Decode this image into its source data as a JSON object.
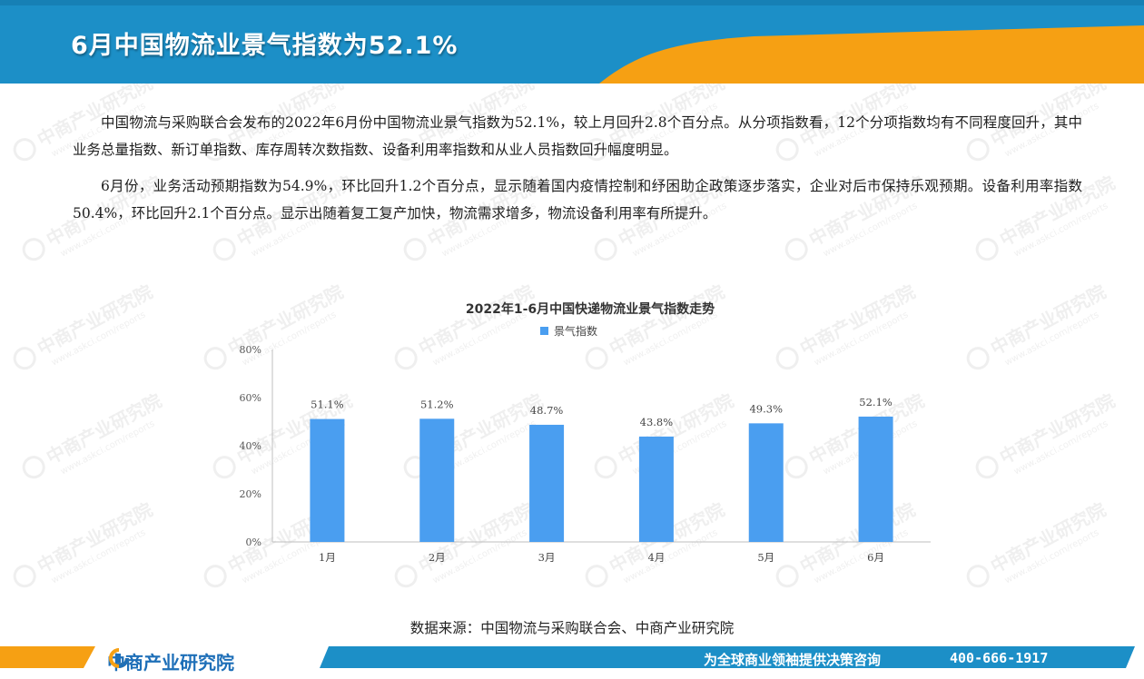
{
  "header": {
    "title": "6月中国物流业景气指数为52.1%",
    "colors": {
      "blue": "#1c8fc7",
      "orange": "#f6a013"
    }
  },
  "body": {
    "paragraph_1": "中国物流与采购联合会发布的2022年6月份中国物流业景气指数为52.1%，较上月回升2.8个百分点。从分项指数看，12个分项指数均有不同程度回升，其中业务总量指数、新订单指数、库存周转次数指数、设备利用率指数和从业人员指数回升幅度明显。",
    "paragraph_2": "6月份，业务活动预期指数为54.9%，环比回升1.2个百分点，显示随着国内疫情控制和纾困助企政策逐步落实，企业对后市保持乐观预期。设备利用率指数50.4%，环比回升2.1个百分点。显示出随着复工复产加快，物流需求增多，物流设备利用率有所提升。"
  },
  "chart_data": {
    "type": "bar",
    "title": "2022年1-6月中国快递物流业景气指数走势",
    "categories": [
      "1月",
      "2月",
      "3月",
      "4月",
      "5月",
      "6月"
    ],
    "series": [
      {
        "name": "景气指数",
        "values": [
          51.1,
          51.2,
          48.7,
          43.8,
          49.3,
          52.1
        ],
        "color": "#4a9ef0"
      }
    ],
    "data_labels": [
      "51.1%",
      "51.2%",
      "48.7%",
      "43.8%",
      "49.3%",
      "52.1%"
    ],
    "y_ticks": [
      "0%",
      "20%",
      "40%",
      "60%",
      "80%"
    ],
    "ylim": [
      0,
      80
    ],
    "legend_position": "top-center",
    "grid": false
  },
  "source": "数据来源：中国物流与采购联合会、中商产业研究院",
  "footer": {
    "brand": "中商产业研究院",
    "slogan": "为全球商业领袖提供决策咨询",
    "phone": "400-666-1917"
  },
  "watermark": {
    "text": "中商产业研究院",
    "url": "www.askci.com/reports"
  }
}
